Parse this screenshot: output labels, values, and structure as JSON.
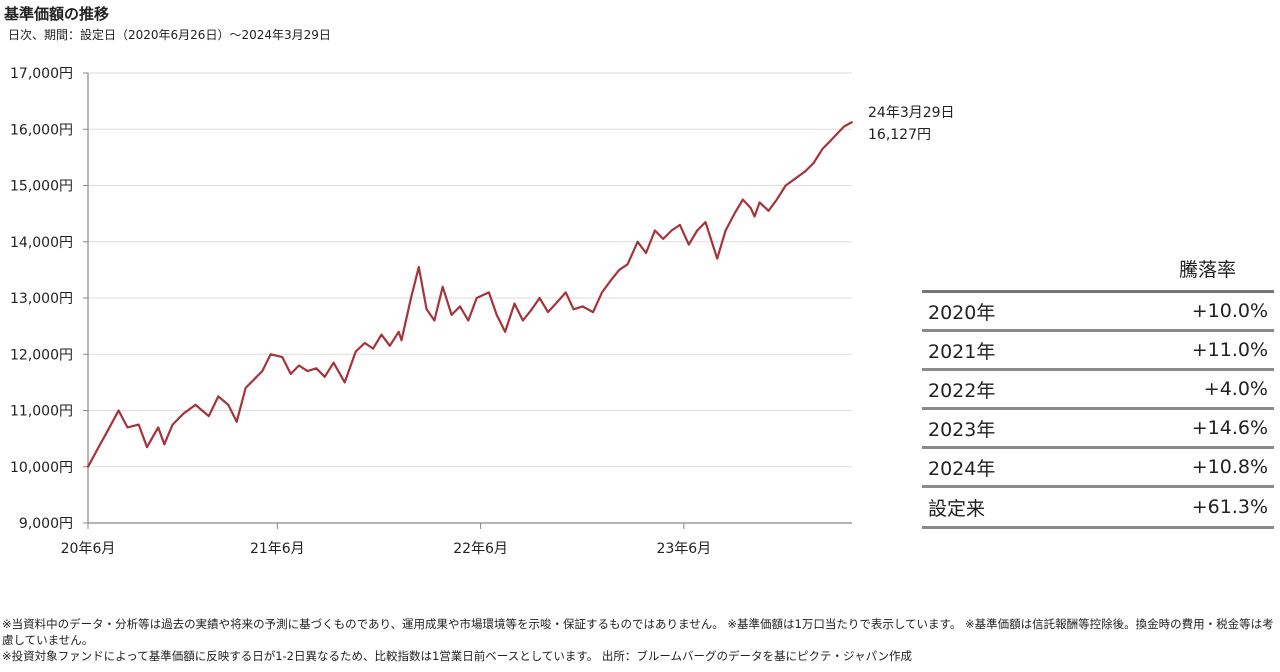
{
  "title": "基準価額の推移",
  "subtitle": "日次、期間：設定日（2020年6月26日）～2024年3月29日",
  "colors": {
    "line": "#a5343a",
    "axis": "#888888",
    "grid": "#dddddd"
  },
  "chart_data": {
    "type": "line",
    "title": "基準価額の推移",
    "xlabel": "",
    "ylabel": "",
    "ylim": [
      9000,
      17000
    ],
    "y_ticks": [
      9000,
      10000,
      11000,
      12000,
      13000,
      14000,
      15000,
      16000,
      17000
    ],
    "y_tick_labels": [
      "9,000円",
      "10,000円",
      "11,000円",
      "12,000円",
      "13,000円",
      "14,000円",
      "15,000円",
      "16,000円",
      "17,000円"
    ],
    "xlim": [
      "2020-06-26",
      "2024-03-29"
    ],
    "x_ticks": [
      "2020-06-01",
      "2021-06-01",
      "2022-06-01",
      "2023-06-01"
    ],
    "x_tick_labels": [
      "20年6月",
      "21年6月",
      "22年6月",
      "23年6月"
    ],
    "grid": true,
    "series": [
      {
        "name": "",
        "x": [
          "2020-06-26",
          "2020-07-15",
          "2020-08-01",
          "2020-08-20",
          "2020-09-05",
          "2020-09-25",
          "2020-10-10",
          "2020-10-30",
          "2020-11-10",
          "2020-11-25",
          "2020-12-15",
          "2021-01-05",
          "2021-01-29",
          "2021-02-15",
          "2021-03-05",
          "2021-03-20",
          "2021-04-05",
          "2021-04-20",
          "2021-05-05",
          "2021-05-20",
          "2021-06-10",
          "2021-06-25",
          "2021-07-10",
          "2021-07-25",
          "2021-08-10",
          "2021-08-25",
          "2021-09-10",
          "2021-09-30",
          "2021-10-20",
          "2021-11-05",
          "2021-11-20",
          "2021-12-05",
          "2021-12-20",
          "2022-01-05",
          "2022-01-10",
          "2022-01-27",
          "2022-02-10",
          "2022-02-24",
          "2022-03-10",
          "2022-03-25",
          "2022-04-10",
          "2022-04-25",
          "2022-05-10",
          "2022-05-25",
          "2022-06-16",
          "2022-06-30",
          "2022-07-15",
          "2022-08-01",
          "2022-08-16",
          "2022-09-01",
          "2022-09-15",
          "2022-09-30",
          "2022-10-14",
          "2022-11-01",
          "2022-11-15",
          "2022-12-01",
          "2022-12-20",
          "2023-01-05",
          "2023-01-20",
          "2023-02-05",
          "2023-02-20",
          "2023-03-10",
          "2023-03-25",
          "2023-04-10",
          "2023-04-25",
          "2023-05-10",
          "2023-05-25",
          "2023-06-10",
          "2023-06-25",
          "2023-07-10",
          "2023-07-31",
          "2023-08-15",
          "2023-08-31",
          "2023-09-15",
          "2023-09-29",
          "2023-10-06",
          "2023-10-15",
          "2023-10-31",
          "2023-11-15",
          "2023-12-01",
          "2023-12-15",
          "2024-01-05",
          "2024-01-20",
          "2024-02-05",
          "2024-02-20",
          "2024-03-05",
          "2024-03-15",
          "2024-03-29"
        ],
        "values": [
          10000,
          10350,
          10650,
          11000,
          10700,
          10750,
          10350,
          10700,
          10400,
          10750,
          10950,
          11100,
          10900,
          11250,
          11100,
          10800,
          11400,
          11550,
          11700,
          12000,
          11950,
          11650,
          11800,
          11700,
          11750,
          11600,
          11850,
          11500,
          12050,
          12200,
          12100,
          12350,
          12150,
          12400,
          12250,
          13000,
          13550,
          12800,
          12600,
          13200,
          12700,
          12850,
          12600,
          13000,
          13100,
          12700,
          12400,
          12900,
          12600,
          12800,
          13000,
          12750,
          12900,
          13100,
          12800,
          12850,
          12750,
          13100,
          13300,
          13500,
          13600,
          14000,
          13800,
          14200,
          14050,
          14200,
          14300,
          13950,
          14200,
          14350,
          13700,
          14200,
          14500,
          14750,
          14600,
          14450,
          14700,
          14550,
          14750,
          15000,
          15100,
          15250,
          15400,
          15650,
          15800,
          15950,
          16050,
          16127
        ]
      }
    ],
    "annotation": {
      "date": "24年3月29日",
      "value": "16,127円"
    }
  },
  "table": {
    "header": "騰落率",
    "rows": [
      {
        "label": "2020年",
        "value": "+10.0%"
      },
      {
        "label": "2021年",
        "value": "+11.0%"
      },
      {
        "label": "2022年",
        "value": "+4.0%"
      },
      {
        "label": "2023年",
        "value": "+14.6%"
      },
      {
        "label": "2024年",
        "value": "+10.8%"
      },
      {
        "label": "設定来",
        "value": "+61.3%"
      }
    ]
  },
  "footnotes": [
    "※当資料中のデータ・分析等は過去の実績や将来の予測に基づくものであり、運用成果や市場環境等を示唆・保証するものではありません。 ※基準価額は1万口当たりで表示しています。 ※基準価額は信託報酬等控除後。換金時の費用・税金等は考慮していません。",
    "※投資対象ファンドによって基準価額に反映する日が1-2日異なるため、比較指数は1営業日前ベースとしています。 出所：ブルームバーグのデータを基にピクテ・ジャパン作成"
  ]
}
